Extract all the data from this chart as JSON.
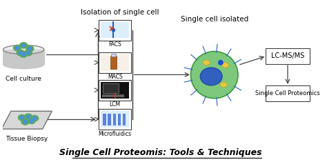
{
  "title": "Single Cell Proteomis: Tools & Techniques",
  "title_fontsize": 9,
  "bg_color": "#ffffff",
  "fig_width": 4.74,
  "fig_height": 2.38,
  "dpi": 100,
  "labels": {
    "cell_culture": "Cell culture",
    "tissue_biopsy": "Tissue Biopsy",
    "isolation_title": "Isolation of single cell",
    "facs": "FACS",
    "macs": "MACS",
    "lcm": "LCM",
    "microfluidics": "Microfluidics",
    "single_cell_isolated": "Single cell isolated",
    "lc_ms": "LC-MS/MS",
    "proteomics": "Single Cell Proteomics"
  },
  "colors": {
    "arrow": "#404040",
    "box_edge": "#404040",
    "cell_culture_dish": "#c8c8c8",
    "cell_green": "#5aaa5a",
    "cell_blue": "#4a90d9",
    "cell_yellow": "#e8c840",
    "big_cell_bg": "#7dc87d",
    "big_cell_nucleus": "#3060c0",
    "technique_box": "#ffffff"
  }
}
